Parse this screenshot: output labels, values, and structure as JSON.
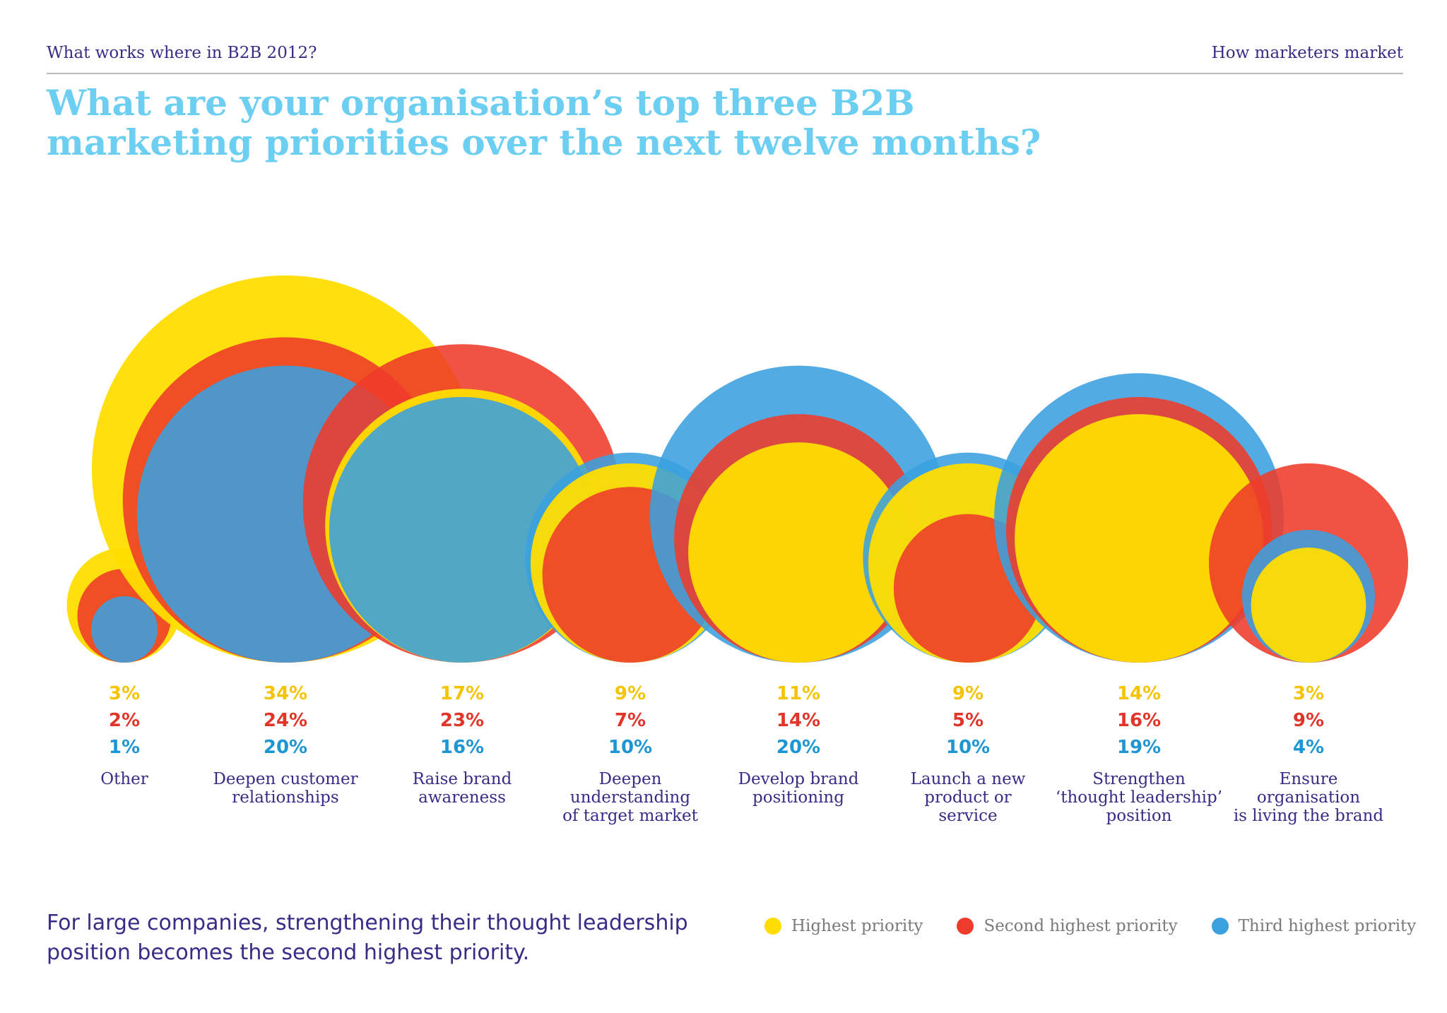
{
  "header": {
    "left": "What works where in B2B 2012?",
    "right": "How marketers market"
  },
  "title": "What are your organisation’s top three B2B marketing priorities over the next twelve months?",
  "colors": {
    "highest": "#ffdd00",
    "second": "#ee3b2a",
    "third": "#3aa1df",
    "highest_text": "#f5c400",
    "second_text": "#e2352a",
    "third_text": "#1e96d3"
  },
  "chart_data": {
    "type": "bubble",
    "series": [
      {
        "name": "Highest priority",
        "values": [
          3,
          34,
          17,
          9,
          11,
          9,
          14,
          3
        ]
      },
      {
        "name": "Second highest priority",
        "values": [
          2,
          24,
          23,
          7,
          14,
          5,
          16,
          9
        ]
      },
      {
        "name": "Third highest priority",
        "values": [
          1,
          20,
          16,
          10,
          20,
          10,
          19,
          4
        ]
      }
    ],
    "categories": [
      {
        "lines": [
          "Other"
        ]
      },
      {
        "lines": [
          "Deepen customer",
          "relationships"
        ]
      },
      {
        "lines": [
          "Raise brand",
          "awareness"
        ]
      },
      {
        "lines": [
          "Deepen",
          "understanding",
          "of target market"
        ]
      },
      {
        "lines": [
          "Develop brand",
          "positioning"
        ]
      },
      {
        "lines": [
          "Launch a new",
          "product or",
          "service"
        ]
      },
      {
        "lines": [
          "Strengthen",
          "‘thought leadership’",
          "position"
        ]
      },
      {
        "lines": [
          "Ensure",
          "organisation",
          "is living the brand"
        ]
      }
    ],
    "value_suffix": "%",
    "legend_position": "bottom-right"
  },
  "footnote": "For large companies, strengthening their thought leadership position becomes the second highest priority."
}
